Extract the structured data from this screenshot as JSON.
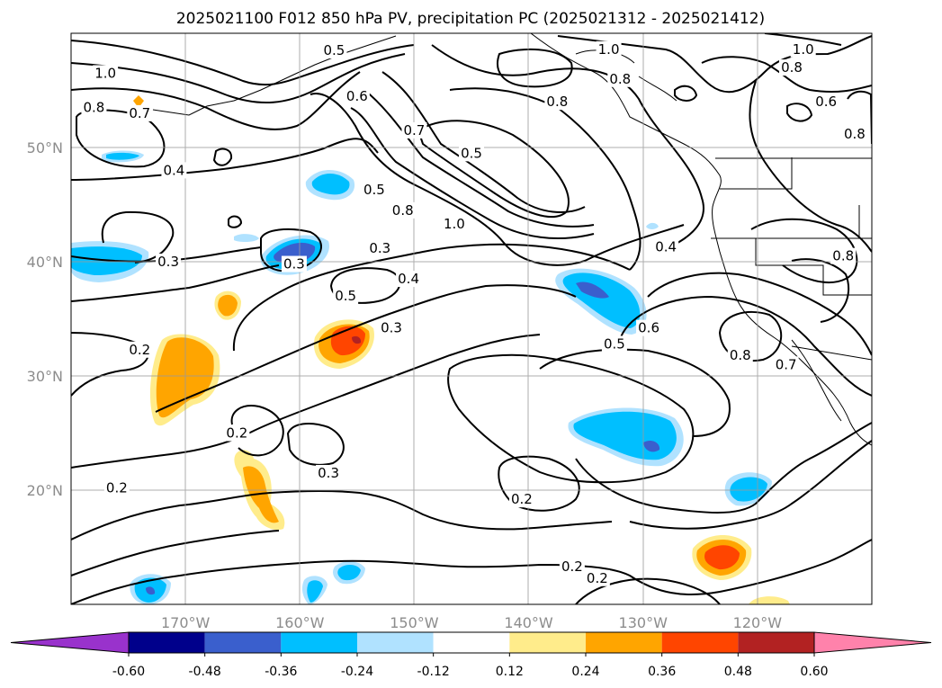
{
  "figure": {
    "title": "2025021100 F012 850 hPa PV, precipitation PC (2025021312 - 2025021412)"
  },
  "map": {
    "lon_range": [
      -180,
      -110
    ],
    "lat_range": [
      10,
      60
    ],
    "lon_ticks": [
      {
        "value": -170,
        "label": "170°W"
      },
      {
        "value": -160,
        "label": "160°W"
      },
      {
        "value": -150,
        "label": "150°W"
      },
      {
        "value": -140,
        "label": "140°W"
      },
      {
        "value": -130,
        "label": "130°W"
      },
      {
        "value": -120,
        "label": "120°W"
      }
    ],
    "lat_ticks": [
      {
        "value": 20,
        "label": "20°N"
      },
      {
        "value": 30,
        "label": "30°N"
      },
      {
        "value": 40,
        "label": "40°N"
      },
      {
        "value": 50,
        "label": "50°N"
      }
    ],
    "gridlines": true,
    "contour_labels": [
      {
        "lon": -177,
        "lat": 56.5,
        "text": "1.0"
      },
      {
        "lon": -178,
        "lat": 53.5,
        "text": "0.8"
      },
      {
        "lon": -174,
        "lat": 53,
        "text": "0.7"
      },
      {
        "lon": -171,
        "lat": 48,
        "text": "0.4"
      },
      {
        "lon": -157,
        "lat": 58.5,
        "text": "0.5"
      },
      {
        "lon": -155,
        "lat": 54.5,
        "text": "0.6"
      },
      {
        "lon": -150,
        "lat": 51.5,
        "text": "0.7"
      },
      {
        "lon": -145,
        "lat": 49.5,
        "text": "0.5"
      },
      {
        "lon": -137.5,
        "lat": 54,
        "text": "0.8"
      },
      {
        "lon": -133,
        "lat": 58.6,
        "text": "1.0"
      },
      {
        "lon": -132,
        "lat": 56,
        "text": "0.8"
      },
      {
        "lon": -116,
        "lat": 58.6,
        "text": "1.0"
      },
      {
        "lon": -117,
        "lat": 57,
        "text": "0.8"
      },
      {
        "lon": -114,
        "lat": 54,
        "text": "0.6"
      },
      {
        "lon": -111.5,
        "lat": 51.2,
        "text": "0.8"
      },
      {
        "lon": -153.5,
        "lat": 46.3,
        "text": "0.5"
      },
      {
        "lon": -151,
        "lat": 44.5,
        "text": "0.8"
      },
      {
        "lon": -146.5,
        "lat": 43.3,
        "text": "1.0"
      },
      {
        "lon": -153,
        "lat": 41.2,
        "text": "0.3"
      },
      {
        "lon": -128,
        "lat": 41.3,
        "text": "0.4"
      },
      {
        "lon": -112.5,
        "lat": 40.5,
        "text": "0.8"
      },
      {
        "lon": -160.5,
        "lat": 39.8,
        "text": "0.3"
      },
      {
        "lon": -171.5,
        "lat": 40,
        "text": "0.3"
      },
      {
        "lon": -156,
        "lat": 37,
        "text": "0.5"
      },
      {
        "lon": -150.5,
        "lat": 38.5,
        "text": "0.4"
      },
      {
        "lon": -152,
        "lat": 34.2,
        "text": "0.3"
      },
      {
        "lon": -174,
        "lat": 32.3,
        "text": "0.2"
      },
      {
        "lon": -132.5,
        "lat": 32.8,
        "text": "0.5"
      },
      {
        "lon": -129.5,
        "lat": 34.2,
        "text": "0.6"
      },
      {
        "lon": -121.5,
        "lat": 31.8,
        "text": "0.8"
      },
      {
        "lon": -117.5,
        "lat": 31,
        "text": "0.7"
      },
      {
        "lon": -165.5,
        "lat": 25,
        "text": "0.2"
      },
      {
        "lon": -157.5,
        "lat": 21.5,
        "text": "0.3"
      },
      {
        "lon": -176,
        "lat": 20.2,
        "text": "0.2"
      },
      {
        "lon": -140.6,
        "lat": 19.2,
        "text": "0.2"
      },
      {
        "lon": -136.2,
        "lat": 13.3,
        "text": "0.2"
      },
      {
        "lon": -134,
        "lat": 12.3,
        "text": "0.2"
      }
    ]
  },
  "colorbar": {
    "ticks": [
      "-0.60",
      "-0.48",
      "-0.36",
      "-0.24",
      "-0.12",
      "0.12",
      "0.24",
      "0.36",
      "0.48",
      "0.60"
    ],
    "colors": [
      "#9932CC",
      "#00008B",
      "#3A5FCD",
      "#00BFFF",
      "#B0E2FF",
      "#FFFFFF",
      "#FFEC8B",
      "#FFA500",
      "#FF4500",
      "#B22222",
      "#FF82AB"
    ]
  }
}
